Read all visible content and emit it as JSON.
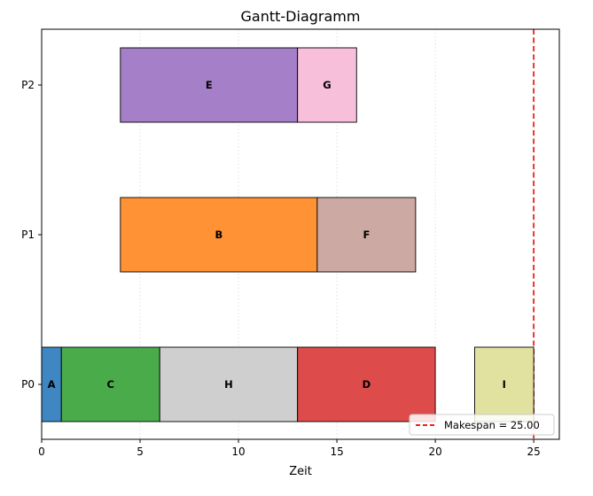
{
  "chart_data": {
    "type": "gantt",
    "title": "Gantt-Diagramm",
    "xlabel": "Zeit",
    "ylabel": "",
    "xlim": [
      0,
      26.3
    ],
    "x_ticks": [
      0,
      5,
      10,
      15,
      20,
      25
    ],
    "x_tick_labels": [
      "0",
      "5",
      "10",
      "15",
      "20",
      "25"
    ],
    "grid": "vertical dotted",
    "rows": [
      "P0",
      "P1",
      "P2"
    ],
    "tasks": [
      {
        "label": "A",
        "row": "P0",
        "start": 0,
        "end": 1,
        "color": "#3f87c2"
      },
      {
        "label": "C",
        "row": "P0",
        "start": 1,
        "end": 6,
        "color": "#4aab4a"
      },
      {
        "label": "H",
        "row": "P0",
        "start": 6,
        "end": 13,
        "color": "#cfcfcf"
      },
      {
        "label": "D",
        "row": "P0",
        "start": 13,
        "end": 20,
        "color": "#de4b4b"
      },
      {
        "label": "I",
        "row": "P0",
        "start": 22,
        "end": 25,
        "color": "#e1e1a0"
      },
      {
        "label": "B",
        "row": "P1",
        "start": 4,
        "end": 14,
        "color": "#ff9234"
      },
      {
        "label": "F",
        "row": "P1",
        "start": 14,
        "end": 19,
        "color": "#cca9a2"
      },
      {
        "label": "E",
        "row": "P2",
        "start": 4,
        "end": 13,
        "color": "#a57fc7"
      },
      {
        "label": "G",
        "row": "P2",
        "start": 13,
        "end": 16,
        "color": "#f7bfd9"
      }
    ],
    "makespan": {
      "value": 25,
      "label": "Makespan = 25.00",
      "color": "#e8221c"
    },
    "legend_position": "lower-right"
  }
}
